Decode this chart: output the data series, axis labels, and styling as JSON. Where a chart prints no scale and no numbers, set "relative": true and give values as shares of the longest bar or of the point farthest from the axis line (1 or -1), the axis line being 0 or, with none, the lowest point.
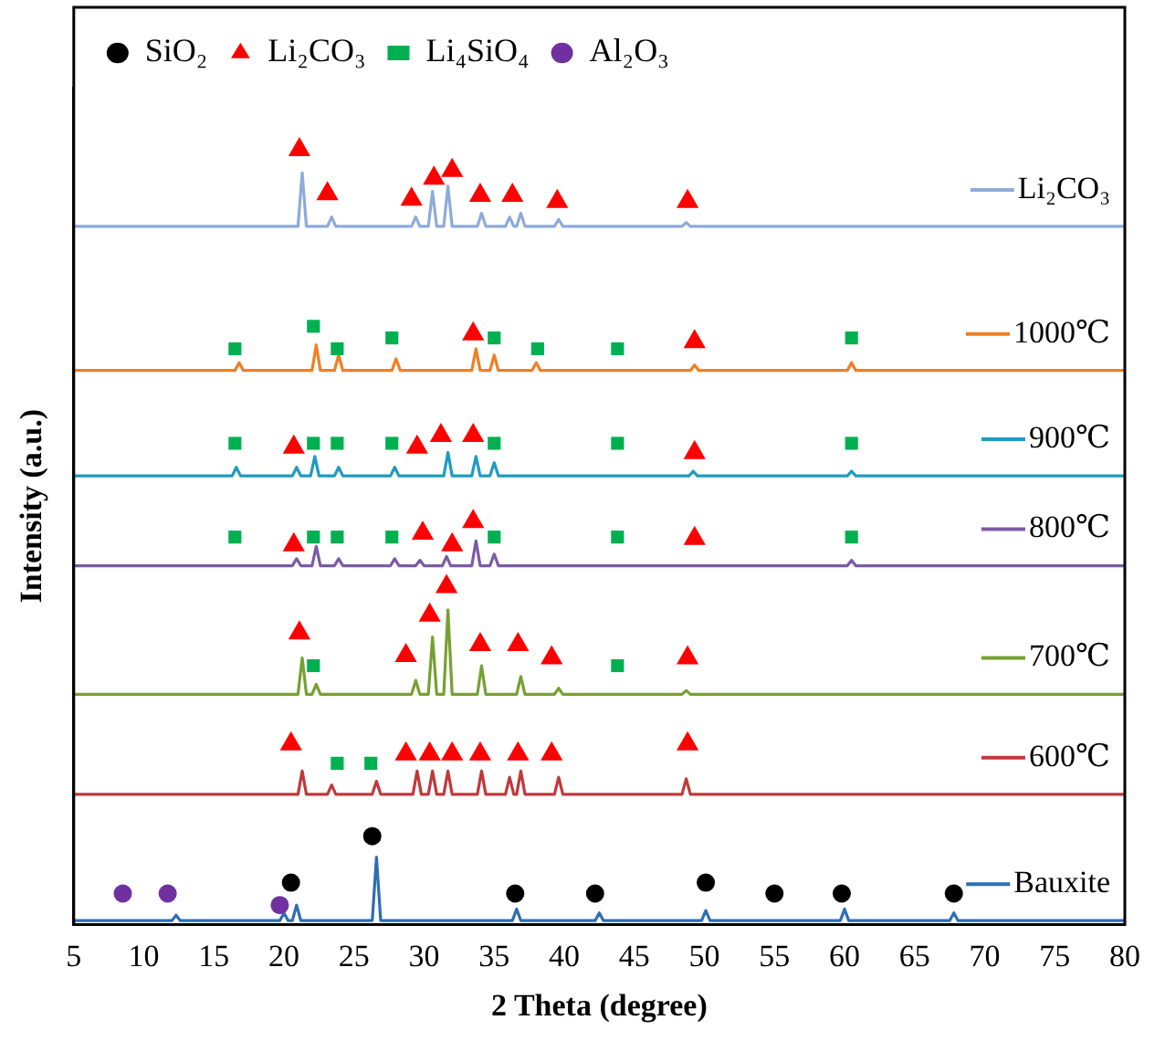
{
  "chart_data": {
    "type": "line",
    "relative": true,
    "xlabel": "2 Theta (degree)",
    "ylabel": "Intensity (a.u.)",
    "xlim": [
      5,
      80
    ],
    "xticks": [
      5,
      10,
      15,
      20,
      25,
      30,
      35,
      40,
      45,
      50,
      55,
      60,
      65,
      70,
      75,
      80
    ],
    "grid": false,
    "legend": "top left",
    "tick_labels": "x",
    "series": [
      {
        "name": "Li₂CO₃",
        "color": "#8eaadb",
        "x": [
          5,
          21.0,
          21.3,
          21.6,
          23.1,
          23.4,
          23.7,
          29.1,
          29.4,
          29.7,
          30.3,
          30.6,
          30.9,
          31.4,
          31.7,
          32.0,
          33.8,
          34.1,
          34.4,
          35.8,
          36.1,
          36.4,
          36.6,
          36.9,
          37.2,
          39.3,
          39.6,
          39.9,
          48.4,
          48.7,
          49.0,
          80
        ],
        "values": [
          0.901,
          0.901,
          0.97,
          0.901,
          0.901,
          0.913,
          0.901,
          0.901,
          0.913,
          0.901,
          0.901,
          0.946,
          0.901,
          0.901,
          0.953,
          0.901,
          0.901,
          0.918,
          0.901,
          0.901,
          0.913,
          0.901,
          0.901,
          0.918,
          0.901,
          0.901,
          0.91,
          0.901,
          0.901,
          0.906,
          0.901,
          0.901
        ]
      },
      {
        "name": "1000℃",
        "color": "#f07f22",
        "x": [
          5,
          16.5,
          16.8,
          17.1,
          22.0,
          22.3,
          22.6,
          23.6,
          23.9,
          24.2,
          27.7,
          28.0,
          28.3,
          33.4,
          33.7,
          34.0,
          34.7,
          35.0,
          35.3,
          37.7,
          38.0,
          38.3,
          49.0,
          49.3,
          49.6,
          60.2,
          60.5,
          60.8,
          80
        ],
        "values": [
          0.715,
          0.715,
          0.725,
          0.715,
          0.715,
          0.748,
          0.715,
          0.715,
          0.735,
          0.715,
          0.715,
          0.73,
          0.715,
          0.715,
          0.743,
          0.715,
          0.715,
          0.735,
          0.715,
          0.715,
          0.725,
          0.715,
          0.715,
          0.722,
          0.715,
          0.715,
          0.725,
          0.715,
          0.715
        ]
      },
      {
        "name": "900℃",
        "color": "#1f9bbf",
        "x": [
          5,
          16.3,
          16.6,
          16.9,
          20.6,
          20.9,
          21.2,
          21.9,
          22.2,
          22.5,
          23.6,
          23.9,
          24.2,
          27.6,
          27.9,
          28.2,
          31.4,
          31.7,
          32.0,
          33.4,
          33.7,
          34.0,
          34.7,
          35.0,
          35.3,
          48.9,
          49.2,
          49.5,
          60.2,
          60.5,
          60.8,
          80
        ],
        "values": [
          0.579,
          0.579,
          0.59,
          0.579,
          0.579,
          0.59,
          0.579,
          0.579,
          0.604,
          0.579,
          0.579,
          0.59,
          0.579,
          0.579,
          0.59,
          0.579,
          0.579,
          0.609,
          0.579,
          0.579,
          0.604,
          0.579,
          0.579,
          0.596,
          0.579,
          0.579,
          0.585,
          0.579,
          0.579,
          0.585,
          0.579,
          0.579
        ]
      },
      {
        "name": "800℃",
        "color": "#7b5aa6",
        "x": [
          5,
          20.6,
          20.9,
          21.2,
          22.0,
          22.3,
          22.6,
          23.6,
          23.9,
          24.2,
          27.6,
          27.9,
          28.2,
          29.4,
          29.7,
          30.0,
          31.3,
          31.6,
          31.9,
          33.4,
          33.7,
          34.0,
          34.7,
          35.0,
          35.3,
          60.2,
          60.5,
          60.8,
          80
        ],
        "values": [
          0.463,
          0.463,
          0.472,
          0.463,
          0.463,
          0.488,
          0.463,
          0.463,
          0.472,
          0.463,
          0.463,
          0.472,
          0.463,
          0.463,
          0.47,
          0.463,
          0.463,
          0.475,
          0.463,
          0.463,
          0.495,
          0.463,
          0.463,
          0.478,
          0.463,
          0.463,
          0.47,
          0.463,
          0.463
        ]
      },
      {
        "name": "700℃",
        "color": "#77a033",
        "x": [
          5,
          21.0,
          21.3,
          21.6,
          22.0,
          22.3,
          22.6,
          29.1,
          29.4,
          29.7,
          30.3,
          30.6,
          30.9,
          31.4,
          31.7,
          32.0,
          33.8,
          34.1,
          34.4,
          36.6,
          36.9,
          37.2,
          39.3,
          39.6,
          39.9,
          48.4,
          48.7,
          49.0,
          80
        ],
        "values": [
          0.297,
          0.297,
          0.344,
          0.297,
          0.297,
          0.31,
          0.297,
          0.297,
          0.315,
          0.297,
          0.297,
          0.371,
          0.297,
          0.297,
          0.406,
          0.297,
          0.297,
          0.334,
          0.297,
          0.297,
          0.32,
          0.297,
          0.297,
          0.305,
          0.297,
          0.297,
          0.302,
          0.297,
          0.297
        ]
      },
      {
        "name": "600℃",
        "color": "#c0393b",
        "x": [
          5,
          21.0,
          21.3,
          21.6,
          23.1,
          23.4,
          23.7,
          26.3,
          26.6,
          26.9,
          29.2,
          29.5,
          29.8,
          30.3,
          30.6,
          30.9,
          31.4,
          31.7,
          32.0,
          33.8,
          34.1,
          34.4,
          35.8,
          36.1,
          36.4,
          36.6,
          36.9,
          37.2,
          39.3,
          39.6,
          39.9,
          48.4,
          48.7,
          49.0,
          80
        ],
        "values": [
          0.168,
          0.168,
          0.198,
          0.168,
          0.168,
          0.18,
          0.168,
          0.168,
          0.185,
          0.168,
          0.168,
          0.198,
          0.168,
          0.168,
          0.198,
          0.168,
          0.168,
          0.198,
          0.168,
          0.168,
          0.198,
          0.168,
          0.168,
          0.19,
          0.168,
          0.168,
          0.198,
          0.168,
          0.168,
          0.19,
          0.168,
          0.168,
          0.188,
          0.168,
          0.168
        ]
      },
      {
        "name": "Bauxite",
        "color": "#2e6db4",
        "x": [
          5,
          12.0,
          12.3,
          12.6,
          19.7,
          20.0,
          20.3,
          20.6,
          20.9,
          21.2,
          26.3,
          26.6,
          26.9,
          36.3,
          36.6,
          36.9,
          42.2,
          42.5,
          42.8,
          49.8,
          50.1,
          50.4,
          59.7,
          60.0,
          60.3,
          67.5,
          67.8,
          68.1,
          80
        ],
        "values": [
          0.005,
          0.005,
          0.012,
          0.005,
          0.005,
          0.015,
          0.005,
          0.005,
          0.025,
          0.005,
          0.005,
          0.087,
          0.005,
          0.005,
          0.02,
          0.005,
          0.005,
          0.015,
          0.005,
          0.005,
          0.018,
          0.005,
          0.005,
          0.02,
          0.005,
          0.005,
          0.015,
          0.005,
          0.005
        ]
      },
      {
        "name": "SiO₂",
        "type": "scatter",
        "marker": "circle",
        "color": "#000000",
        "x": [
          20.5,
          26.3,
          36.5,
          42.2,
          50.1,
          55.0,
          59.8,
          67.8
        ],
        "values": [
          0.054,
          0.114,
          0.04,
          0.04,
          0.054,
          0.04,
          0.04,
          0.04
        ]
      },
      {
        "name": "Li₂CO₃",
        "type": "scatter",
        "marker": "triangle",
        "color": "#ff0000",
        "x": [
          21.1,
          23.1,
          29.1,
          30.7,
          32.0,
          34.0,
          36.3,
          39.5,
          48.8,
          33.5,
          49.3,
          20.7,
          29.5,
          31.2,
          33.5,
          49.3,
          20.7,
          29.9,
          32.0,
          33.5,
          49.3,
          21.1,
          28.7,
          30.4,
          31.6,
          34.0,
          36.7,
          39.1,
          48.8,
          20.5,
          28.7,
          30.4,
          32.0,
          34.0,
          36.7,
          39.1,
          48.8
        ],
        "values": [
          1.0,
          0.943,
          0.936,
          0.963,
          0.973,
          0.941,
          0.941,
          0.933,
          0.933,
          0.762,
          0.752,
          0.616,
          0.616,
          0.631,
          0.631,
          0.609,
          0.49,
          0.505,
          0.49,
          0.52,
          0.498,
          0.376,
          0.347,
          0.399,
          0.436,
          0.361,
          0.361,
          0.344,
          0.344,
          0.233,
          0.22,
          0.22,
          0.22,
          0.22,
          0.22,
          0.22,
          0.233
        ]
      },
      {
        "name": "Li₄SiO₄",
        "type": "scatter",
        "marker": "square",
        "color": "#00b050",
        "x": [
          16.5,
          22.1,
          23.8,
          27.7,
          35.0,
          38.1,
          43.8,
          60.5,
          16.5,
          22.1,
          23.8,
          27.7,
          35.0,
          43.8,
          60.5,
          16.5,
          22.1,
          23.8,
          27.7,
          35.0,
          43.8,
          60.5,
          22.1,
          43.8,
          23.8,
          26.2
        ],
        "values": [
          0.743,
          0.772,
          0.743,
          0.757,
          0.757,
          0.743,
          0.743,
          0.757,
          0.621,
          0.621,
          0.621,
          0.621,
          0.621,
          0.621,
          0.621,
          0.5,
          0.5,
          0.5,
          0.5,
          0.5,
          0.5,
          0.5,
          0.334,
          0.334,
          0.208,
          0.208
        ]
      },
      {
        "name": "Al₂O₃",
        "type": "scatter",
        "marker": "circle",
        "color": "#7030a0",
        "x": [
          8.5,
          11.7,
          19.7
        ],
        "values": [
          0.04,
          0.04,
          0.025
        ]
      }
    ]
  }
}
